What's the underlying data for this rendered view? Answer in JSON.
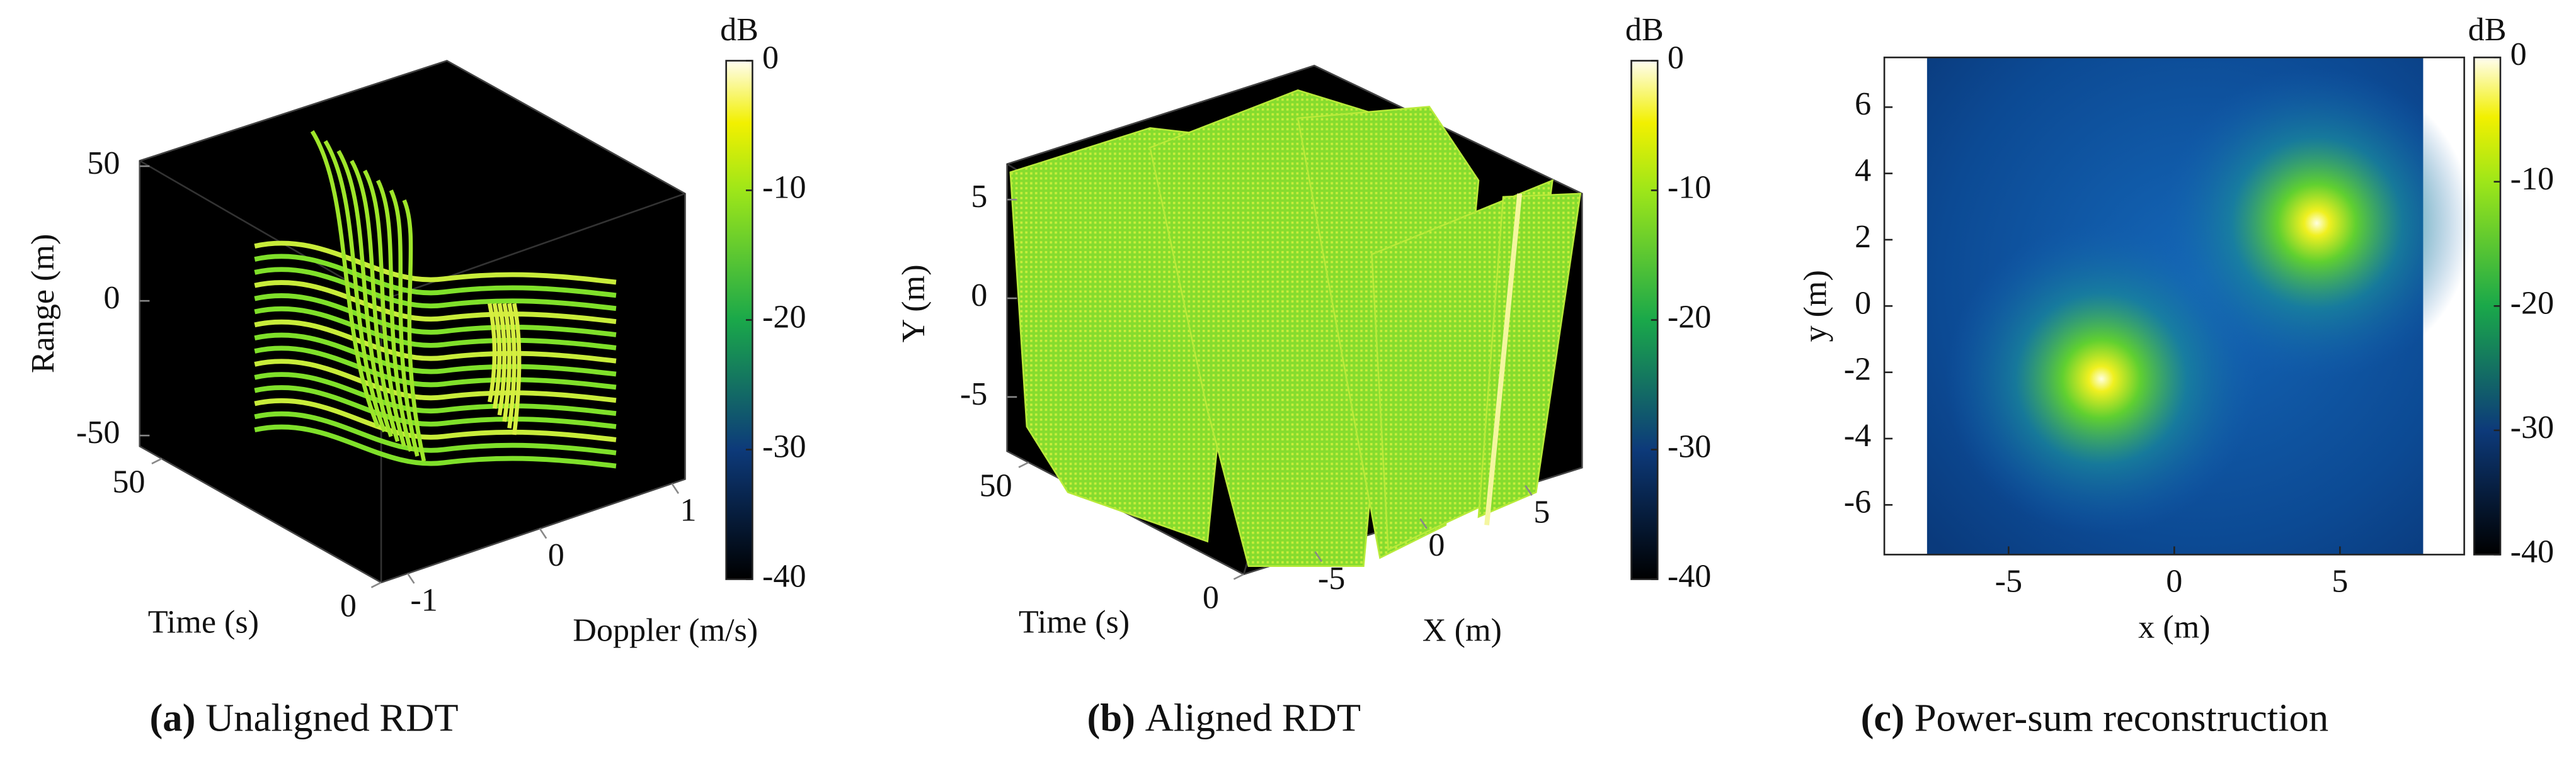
{
  "chart_data": [
    {
      "type": "scatter3d",
      "panel_label": "(a)",
      "caption": "Unaligned RDT",
      "zlabel": "Range (m)",
      "ylabel": "Time (s)",
      "xlabel": "Doppler (m/s)",
      "zlim": [
        -54,
        52
      ],
      "zticks": [
        -50,
        0,
        50
      ],
      "ylim": [
        0,
        55
      ],
      "yticks": [
        0,
        50
      ],
      "xlim": [
        -1.2,
        1.1
      ],
      "xticks": [
        -1,
        0,
        1
      ],
      "colorbar": {
        "label": "dB",
        "lim": [
          -40,
          0
        ],
        "ticks": [
          0,
          -10,
          -20,
          -30,
          -40
        ]
      }
    },
    {
      "type": "scatter3d",
      "panel_label": "(b)",
      "caption": "Aligned RDT",
      "zlabel": "Y (m)",
      "ylabel": "Time (s)",
      "xlabel": "X (m)",
      "zlim": [
        -7.75,
        6.8
      ],
      "zticks": [
        -5,
        0,
        5
      ],
      "ylim": [
        0,
        55
      ],
      "yticks": [
        0,
        50
      ],
      "xlim": [
        -8.4,
        7.7
      ],
      "xticks": [
        -5,
        0,
        5
      ],
      "colorbar": {
        "label": "dB",
        "lim": [
          -40,
          0
        ],
        "ticks": [
          0,
          -10,
          -20,
          -30,
          -40
        ]
      }
    },
    {
      "type": "heatmap",
      "panel_label": "(c)",
      "caption": "Power-sum reconstruction",
      "xlabel": "x (m)",
      "ylabel": "y (m)",
      "xlim": [
        -8.75,
        8.75
      ],
      "xticks": [
        -5,
        0,
        5
      ],
      "ylim": [
        -7.5,
        7.5
      ],
      "yticks": [
        -6,
        -4,
        -2,
        0,
        2,
        4,
        6
      ],
      "peaks": [
        {
          "x": -2.2,
          "y": -2.2
        },
        {
          "x": 4.3,
          "y": 2.5
        }
      ],
      "colorbar": {
        "label": "dB",
        "lim": [
          -40,
          0
        ],
        "ticks": [
          0,
          -10,
          -20,
          -30,
          -40
        ]
      }
    }
  ]
}
